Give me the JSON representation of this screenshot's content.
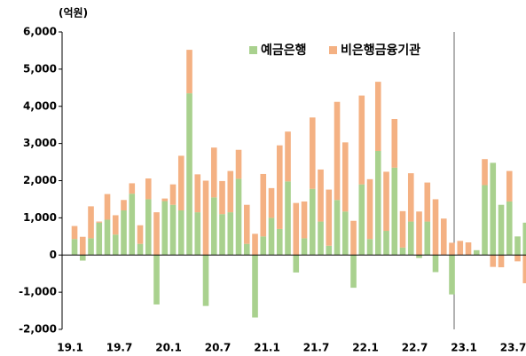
{
  "chart_data": {
    "type": "stacked_bar",
    "unit_label": "(억원)",
    "categories": [
      "19.1",
      null,
      null,
      null,
      null,
      null,
      "19.7",
      null,
      null,
      null,
      null,
      null,
      "20.1",
      null,
      null,
      null,
      null,
      null,
      "20.7",
      null,
      null,
      null,
      null,
      null,
      "21.1",
      null,
      null,
      null,
      null,
      null,
      "21.7",
      null,
      null,
      null,
      null,
      null,
      "22.1",
      null,
      null,
      null,
      null,
      null,
      "22.7",
      null,
      null,
      null,
      null,
      null,
      "23.1",
      null,
      null,
      null,
      null,
      null,
      "23.7",
      null
    ],
    "series": [
      {
        "name": "예금은행",
        "color": "#a9d18e",
        "values": [
          430,
          -150,
          450,
          870,
          950,
          550,
          1200,
          1650,
          300,
          1500,
          -1330,
          1450,
          1350,
          1200,
          4350,
          1150,
          -1370,
          1550,
          1100,
          1150,
          2050,
          300,
          -1680,
          500,
          1000,
          700,
          1980,
          -470,
          450,
          1780,
          900,
          250,
          1480,
          1170,
          -880,
          1900,
          430,
          2800,
          650,
          2350,
          200,
          900,
          -80,
          900,
          -460,
          0,
          -1060,
          0,
          0,
          130,
          1880,
          2480,
          1350,
          1440,
          500,
          870
        ]
      },
      {
        "name": "비은행금융기관",
        "color": "#f4b183",
        "values": [
          350,
          490,
          860,
          30,
          690,
          520,
          280,
          280,
          500,
          560,
          1150,
          70,
          550,
          1470,
          1170,
          1020,
          2000,
          1340,
          890,
          1110,
          780,
          1050,
          570,
          1680,
          800,
          2250,
          1340,
          1400,
          990,
          1920,
          1400,
          1510,
          2640,
          1860,
          920,
          2390,
          1610,
          1860,
          1590,
          1310,
          980,
          1300,
          1170,
          1050,
          1500,
          980,
          330,
          380,
          340,
          0,
          700,
          -320,
          -330,
          820,
          -170,
          -760
        ]
      }
    ],
    "ylim": [
      -2000,
      6000
    ],
    "yticks": [
      {
        "value": -2000,
        "label": "-2,000"
      },
      {
        "value": -1000,
        "label": "-1,000"
      },
      0,
      {
        "value": 1000,
        "label": "1,000"
      },
      {
        "value": 2000,
        "label": "2,000"
      },
      {
        "value": 3000,
        "label": "3,000"
      },
      {
        "value": 4000,
        "label": "4,000"
      },
      {
        "value": 5000,
        "label": "5,000"
      },
      {
        "value": 6000,
        "label": "6,000"
      }
    ],
    "legend": "top-right"
  }
}
